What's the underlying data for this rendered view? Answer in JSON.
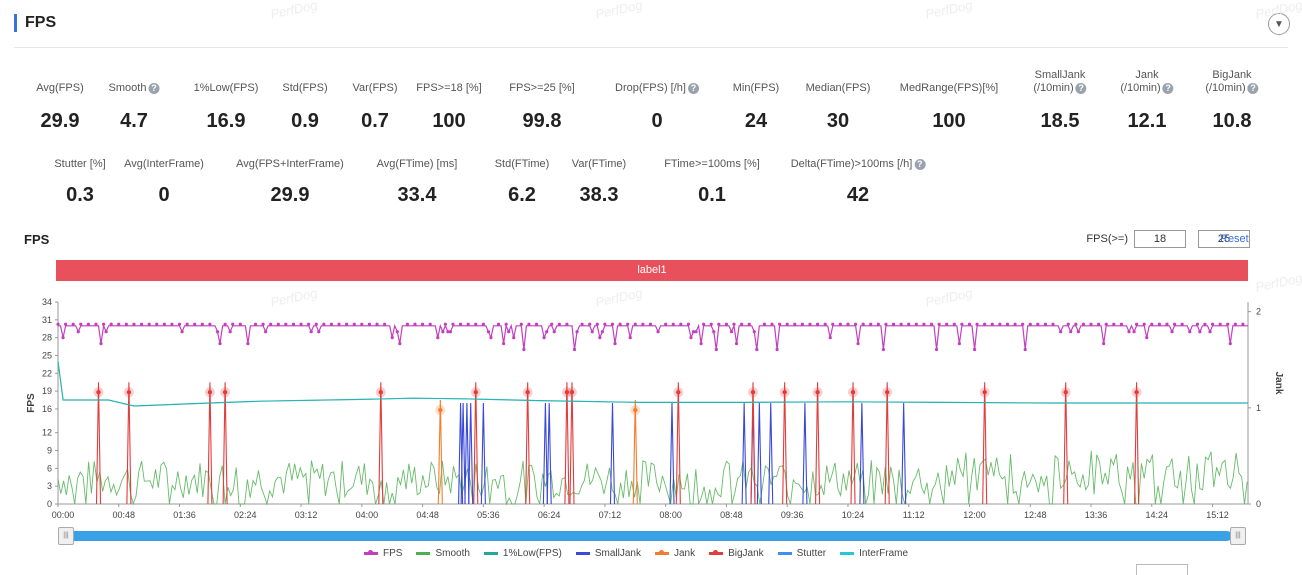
{
  "header": {
    "title": "FPS",
    "collapse_icon": "chevron-down-icon"
  },
  "watermark": "PerfDog",
  "metrics_row1": [
    {
      "label": "Avg(FPS)",
      "value": "29.9",
      "help": false
    },
    {
      "label": "Smooth",
      "value": "4.7",
      "help": true
    },
    {
      "label": "1%Low(FPS)",
      "value": "16.9",
      "help": false
    },
    {
      "label": "Std(FPS)",
      "value": "0.9",
      "help": false
    },
    {
      "label": "Var(FPS)",
      "value": "0.7",
      "help": false
    },
    {
      "label": "FPS>=18 [%]",
      "value": "100",
      "help": false
    },
    {
      "label": "FPS>=25 [%]",
      "value": "99.8",
      "help": false
    },
    {
      "label": "Drop(FPS) [/h]",
      "value": "0",
      "help": true
    },
    {
      "label": "Min(FPS)",
      "value": "24",
      "help": false
    },
    {
      "label": "Median(FPS)",
      "value": "30",
      "help": false
    },
    {
      "label": "MedRange(FPS)[%]",
      "value": "100",
      "help": false
    },
    {
      "label": "SmallJank\n(/10min)",
      "value": "18.5",
      "help": true
    },
    {
      "label": "Jank\n(/10min)",
      "value": "12.1",
      "help": true
    },
    {
      "label": "BigJank\n(/10min)",
      "value": "10.8",
      "help": true
    }
  ],
  "metrics_row2": [
    {
      "label": "Stutter [%]",
      "value": "0.3",
      "help": false
    },
    {
      "label": "Avg(InterFrame)",
      "value": "0",
      "help": false
    },
    {
      "label": "Avg(FPS+InterFrame)",
      "value": "29.9",
      "help": false
    },
    {
      "label": "Avg(FTime) [ms]",
      "value": "33.4",
      "help": false
    },
    {
      "label": "Std(FTime)",
      "value": "6.2",
      "help": false
    },
    {
      "label": "Var(FTime)",
      "value": "38.3",
      "help": false
    },
    {
      "label": "FTime>=100ms [%]",
      "value": "0.1",
      "help": false
    },
    {
      "label": "Delta(FTime)>100ms [/h]",
      "value": "42",
      "help": true
    }
  ],
  "chart_section": {
    "title": "FPS",
    "threshold_label": "FPS(>=)",
    "threshold_low": "18",
    "threshold_high": "25",
    "reset_label": "Reset",
    "band_label": "label1"
  },
  "chart_data": {
    "type": "line",
    "title": "FPS",
    "ylabel": "FPS",
    "y2label": "Jank",
    "y_ticks": [
      0,
      3,
      6,
      9,
      12,
      16,
      19,
      22,
      25,
      28,
      31,
      34
    ],
    "y2_ticks": [
      0,
      1,
      2
    ],
    "ylim": [
      0,
      34
    ],
    "x_ticks": [
      "00:00",
      "00:48",
      "01:36",
      "02:24",
      "03:12",
      "04:00",
      "04:48",
      "05:36",
      "06:24",
      "07:12",
      "08:00",
      "08:48",
      "09:36",
      "10:24",
      "11:12",
      "12:00",
      "12:48",
      "13:36",
      "14:24",
      "15:12"
    ],
    "xlim_seconds": [
      0,
      940
    ],
    "series": [
      {
        "name": "FPS",
        "color": "#c23fbf",
        "typical": 30,
        "dips": [
          {
            "t": 4,
            "v": 28
          },
          {
            "t": 34,
            "v": 27
          },
          {
            "t": 37,
            "v": 29
          },
          {
            "t": 128,
            "v": 27
          },
          {
            "t": 135,
            "v": 29
          },
          {
            "t": 150,
            "v": 27
          },
          {
            "t": 264,
            "v": 28
          },
          {
            "t": 270,
            "v": 27
          },
          {
            "t": 300,
            "v": 28
          },
          {
            "t": 342,
            "v": 28
          },
          {
            "t": 352,
            "v": 27
          },
          {
            "t": 360,
            "v": 28
          },
          {
            "t": 368,
            "v": 26
          },
          {
            "t": 383,
            "v": 28
          },
          {
            "t": 392,
            "v": 29
          },
          {
            "t": 408,
            "v": 26
          },
          {
            "t": 428,
            "v": 28
          },
          {
            "t": 440,
            "v": 27
          },
          {
            "t": 452,
            "v": 28
          },
          {
            "t": 500,
            "v": 28
          },
          {
            "t": 507,
            "v": 27
          },
          {
            "t": 520,
            "v": 26
          },
          {
            "t": 536,
            "v": 27
          },
          {
            "t": 552,
            "v": 26
          },
          {
            "t": 568,
            "v": 26
          },
          {
            "t": 610,
            "v": 28
          },
          {
            "t": 632,
            "v": 27
          },
          {
            "t": 651,
            "v": 26
          },
          {
            "t": 693,
            "v": 26
          },
          {
            "t": 712,
            "v": 27
          },
          {
            "t": 724,
            "v": 26
          },
          {
            "t": 763,
            "v": 26
          },
          {
            "t": 826,
            "v": 27
          },
          {
            "t": 860,
            "v": 28
          },
          {
            "t": 925,
            "v": 27
          }
        ]
      },
      {
        "name": "Smooth",
        "color": "#4caf50"
      },
      {
        "name": "1%Low(FPS)",
        "color": "#26a69a",
        "points": [
          [
            0,
            24
          ],
          [
            4,
            17.5
          ],
          [
            20,
            17.5
          ],
          [
            40,
            17.5
          ],
          [
            60,
            16.5
          ],
          [
            120,
            17
          ],
          [
            160,
            17.3
          ],
          [
            240,
            17.6
          ],
          [
            280,
            17.8
          ],
          [
            320,
            17.7
          ],
          [
            380,
            17.4
          ],
          [
            460,
            17.1
          ],
          [
            540,
            17.1
          ],
          [
            620,
            17.2
          ],
          [
            700,
            17.1
          ],
          [
            780,
            17.0
          ],
          [
            860,
            17.0
          ],
          [
            940,
            17.0
          ]
        ]
      },
      {
        "name": "SmallJank",
        "color": "#3a49d6",
        "times": [
          318,
          320,
          323,
          326,
          336,
          385,
          388,
          438,
          485,
          542,
          549,
          554,
          563,
          590,
          635,
          668
        ]
      },
      {
        "name": "Jank",
        "color": "#f57c2e",
        "times": [
          302,
          456
        ]
      },
      {
        "name": "BigJank",
        "color": "#e23c3c",
        "times": [
          32,
          56,
          120,
          132,
          255,
          330,
          371,
          402,
          406,
          490,
          549,
          574,
          600,
          628,
          655,
          732,
          796,
          852
        ]
      },
      {
        "name": "Stutter",
        "color": "#3f8ef0"
      },
      {
        "name": "InterFrame",
        "color": "#26c6da"
      }
    ]
  },
  "legend": [
    "FPS",
    "Smooth",
    "1%Low(FPS)",
    "SmallJank",
    "Jank",
    "BigJank",
    "Stutter",
    "InterFrame"
  ]
}
